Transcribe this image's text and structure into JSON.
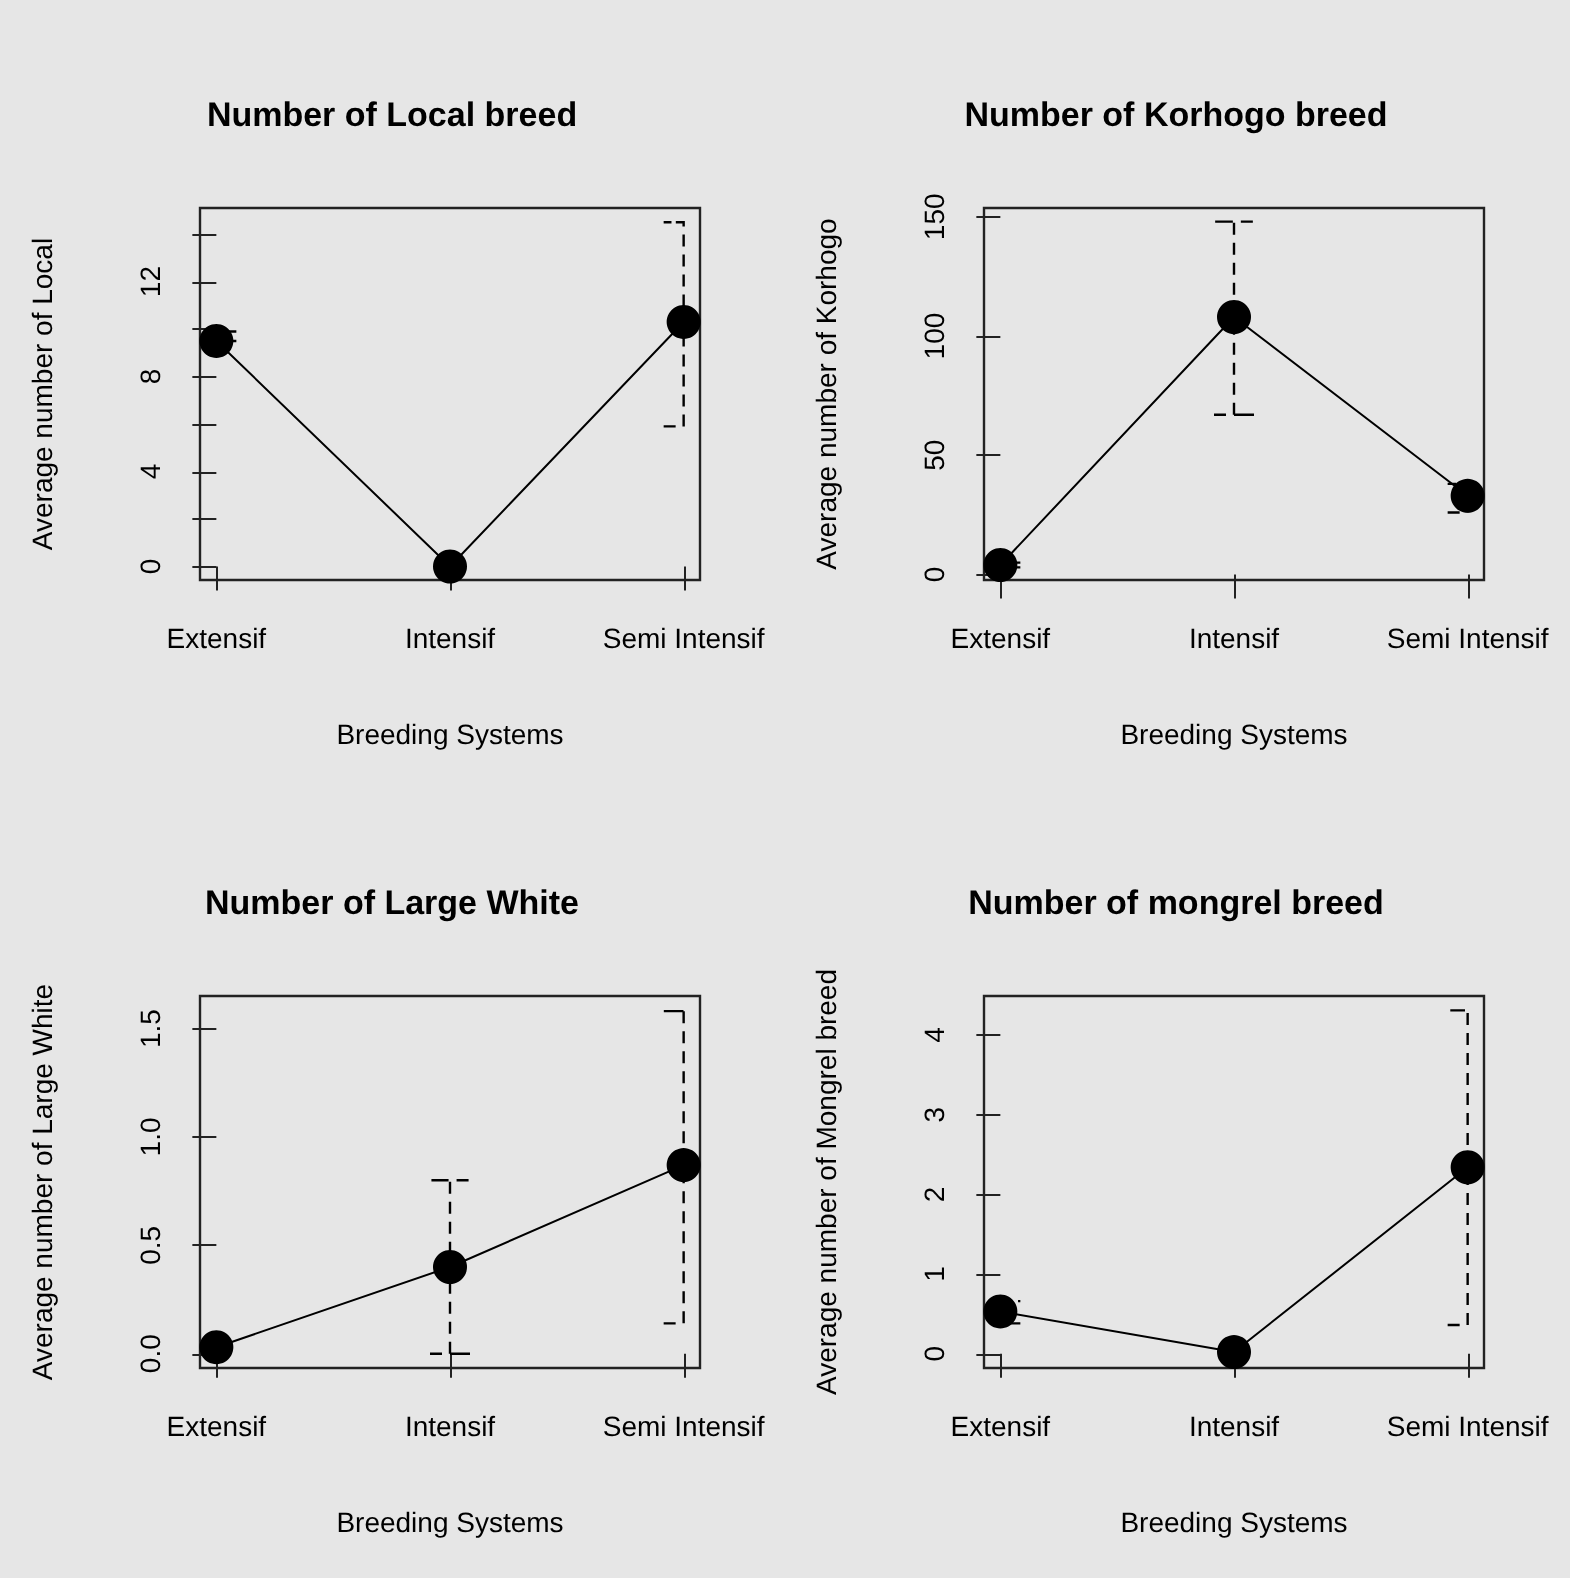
{
  "chart_data": [
    {
      "type": "line",
      "title": "Number of Local breed",
      "xlabel": "Breeding Systems",
      "ylabel": "Average number of Local",
      "categories": [
        "Extensif",
        "Intensif",
        "Semi Intensif"
      ],
      "values": [
        9.5,
        0,
        10.3
      ],
      "errors": [
        [
          9.5,
          9.9
        ],
        null,
        [
          5.9,
          14.5
        ]
      ],
      "color": "#000000",
      "marker": "circle",
      "line_style": "solid",
      "grid": false,
      "ylim": [
        -0.57,
        15.1
      ],
      "yticks": [
        0,
        {
          "value": 2,
          "label": null
        },
        4,
        {
          "value": 6,
          "label": null
        },
        8,
        {
          "value": 10,
          "label": null
        },
        12,
        {
          "value": 14,
          "label": null
        }
      ]
    },
    {
      "type": "line",
      "title": "Number of Korhogo breed",
      "xlabel": "Breeding Systems",
      "ylabel": "Average number of Korhogo",
      "categories": [
        "Extensif",
        "Intensif",
        "Semi Intensif"
      ],
      "values": [
        4,
        108,
        33
      ],
      "errors": [
        [
          3,
          5
        ],
        [
          67,
          148
        ],
        [
          26,
          38
        ]
      ],
      "color": "#000000",
      "marker": "circle",
      "line_style": "solid",
      "grid": false,
      "ylim": [
        -2.3,
        153.7
      ],
      "yticks": [
        0,
        50,
        100,
        150
      ]
    },
    {
      "type": "line",
      "title": "Number of Large White",
      "xlabel": "Breeding Systems",
      "ylabel": "Average number of Large White",
      "categories": [
        "Extensif",
        "Intensif",
        "Semi Intensif"
      ],
      "values": [
        0.03,
        0.4,
        0.87
      ],
      "errors": [
        null,
        [
          0.0,
          0.8
        ],
        [
          0.14,
          1.58
        ]
      ],
      "color": "#000000",
      "marker": "circle",
      "line_style": "solid",
      "grid": false,
      "ylim": [
        -0.066,
        1.65
      ],
      "yticks": [
        {
          "value": 0,
          "label": "0.0"
        },
        0.5,
        {
          "value": 1,
          "label": "1.0"
        },
        1.5
      ]
    },
    {
      "type": "line",
      "title": "Number of mongrel breed",
      "xlabel": "Breeding Systems",
      "ylabel": "Average number of Mongrel breed",
      "categories": [
        "Extensif",
        "Intensif",
        "Semi Intensif"
      ],
      "values": [
        0.53,
        0.02,
        2.34
      ],
      "errors": [
        [
          0.38,
          0.66
        ],
        null,
        [
          0.36,
          4.31
        ]
      ],
      "color": "#000000",
      "marker": "circle",
      "line_style": "solid",
      "grid": false,
      "ylim": [
        -0.18,
        4.49
      ],
      "yticks": [
        0,
        1,
        2,
        3,
        4
      ]
    }
  ]
}
